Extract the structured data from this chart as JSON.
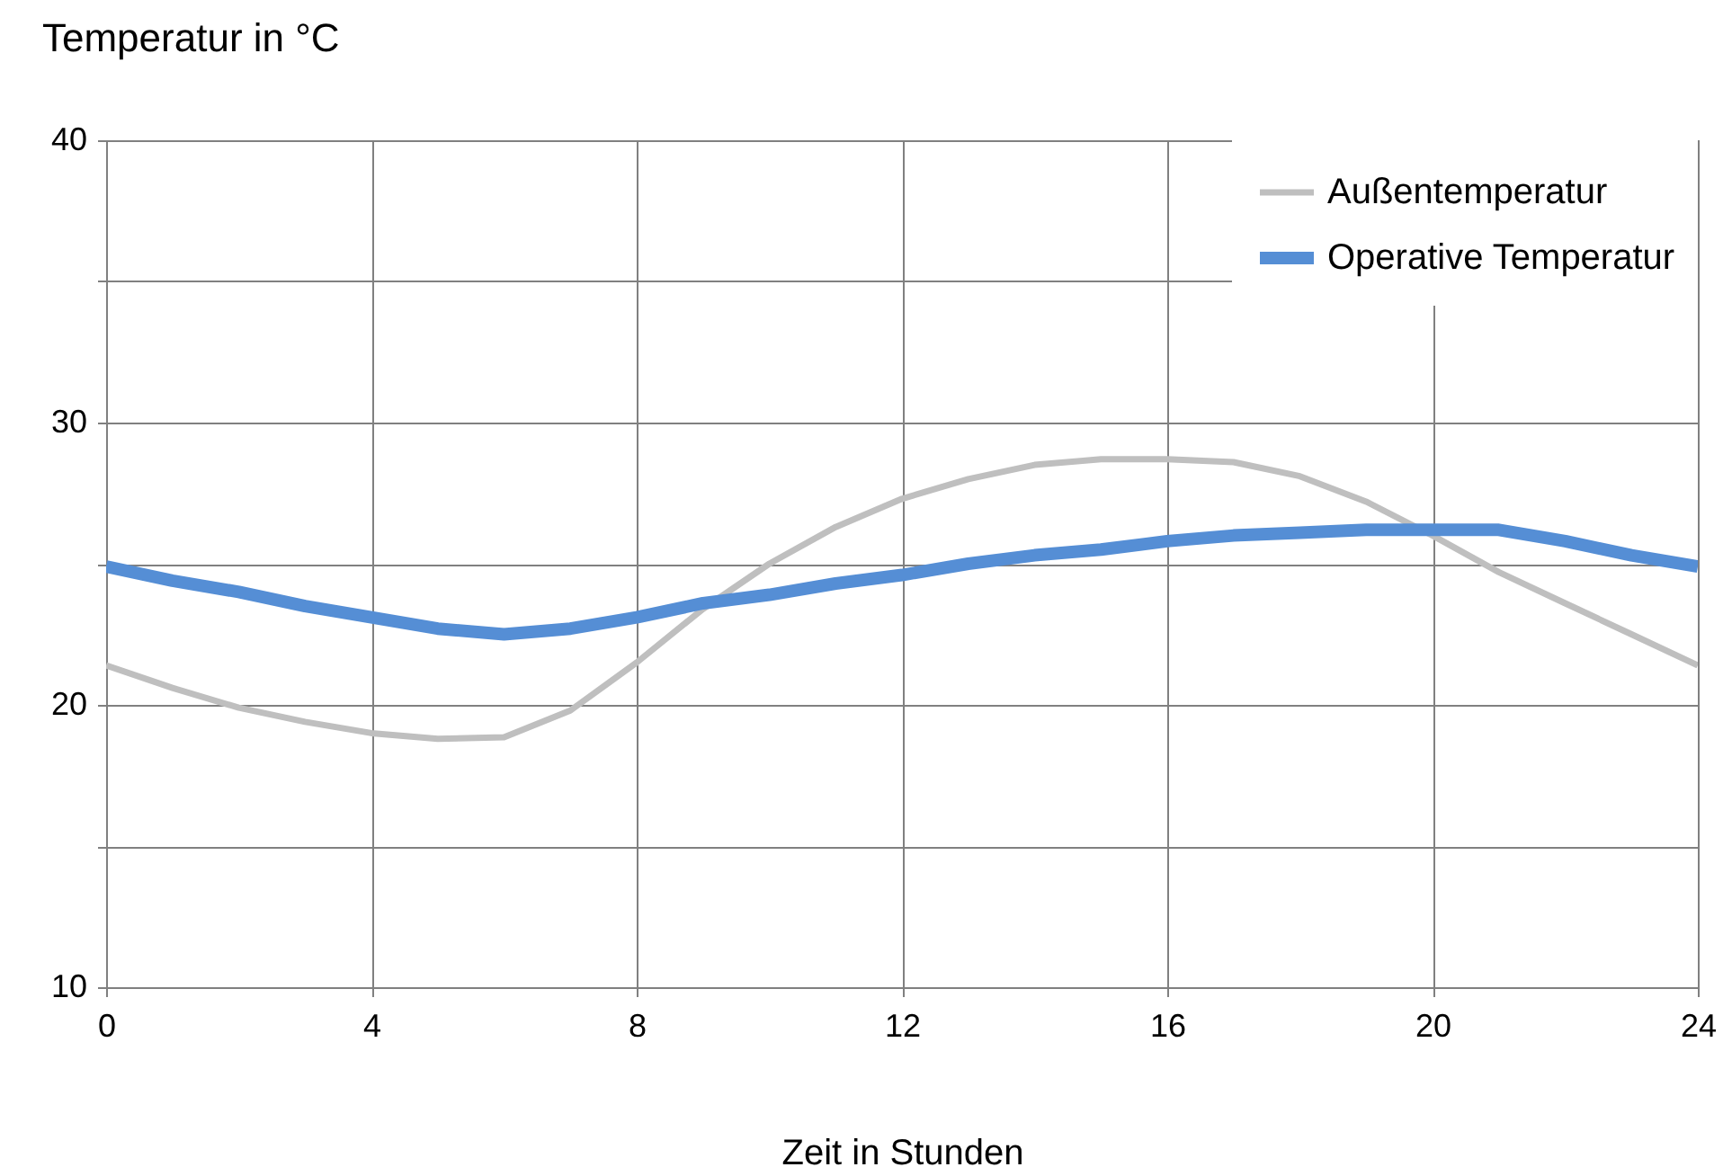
{
  "chart_data": {
    "type": "line",
    "xlabel": "Zeit in Stunden",
    "ylabel": "Temperatur in °C",
    "x": [
      0,
      1,
      2,
      3,
      4,
      5,
      6,
      7,
      8,
      9,
      10,
      11,
      12,
      13,
      14,
      15,
      16,
      17,
      18,
      19,
      20,
      21,
      22,
      23,
      24
    ],
    "series": [
      {
        "name": "Außentemperatur",
        "color": "#bfbfbf",
        "values": [
          21.4,
          20.6,
          19.9,
          19.4,
          19.0,
          18.8,
          18.85,
          19.8,
          21.5,
          23.4,
          25.0,
          26.3,
          27.3,
          28.0,
          28.5,
          28.7,
          28.7,
          28.6,
          28.1,
          27.2,
          26.0,
          24.7,
          23.6,
          22.5,
          21.4
        ]
      },
      {
        "name": "Operative Temperatur",
        "color": "#558ed5",
        "values": [
          24.9,
          24.4,
          24.0,
          23.5,
          23.1,
          22.7,
          22.5,
          22.7,
          23.1,
          23.6,
          23.9,
          24.3,
          24.6,
          25.0,
          25.3,
          25.5,
          25.8,
          26.0,
          26.1,
          26.2,
          26.2,
          26.2,
          25.8,
          25.3,
          24.9
        ]
      }
    ],
    "xlim": [
      0,
      24
    ],
    "xticks": [
      0,
      4,
      8,
      12,
      16,
      20,
      24
    ],
    "ylim": [
      10,
      40
    ],
    "yticks": [
      10,
      {
        "value": 15,
        "label": null
      },
      20,
      {
        "value": 25,
        "label": null
      },
      30,
      {
        "value": 35,
        "label": null
      },
      40
    ],
    "grid": true,
    "legend": "top right"
  }
}
